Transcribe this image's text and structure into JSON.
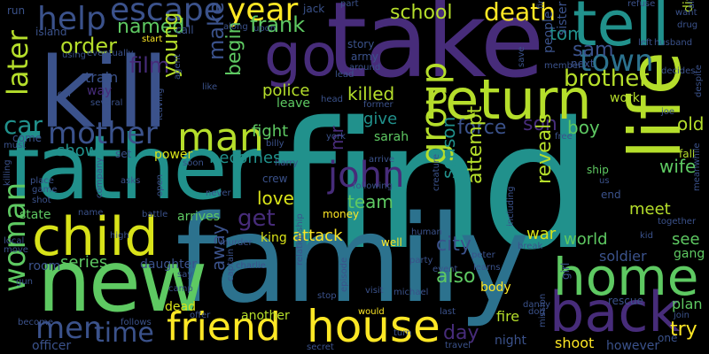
{
  "palette": {
    "background": "#000000",
    "navy": "#3b528b",
    "purple": "#472c7a",
    "teal": "#21918c",
    "green": "#5ec962",
    "lime": "#b5de2b",
    "yellow": "#fde725",
    "gray": "#444444"
  },
  "words": [
    {
      "text": "find",
      "color": "#21918c"
    },
    {
      "text": "take",
      "color": "#472c7a"
    },
    {
      "text": "family",
      "color": "#2c728e"
    },
    {
      "text": "kill",
      "color": "#3b528b"
    },
    {
      "text": "father",
      "color": "#21918c"
    },
    {
      "text": "new",
      "color": "#5ec962"
    },
    {
      "text": "life",
      "color": "#b5de2b"
    },
    {
      "text": "child",
      "color": "#d8e219"
    },
    {
      "text": "friend",
      "color": "#fde725"
    },
    {
      "text": "house",
      "color": "#fde725"
    },
    {
      "text": "back",
      "color": "#472c7a"
    },
    {
      "text": "home",
      "color": "#5ec962"
    },
    {
      "text": "return",
      "color": "#b5de2b"
    },
    {
      "text": "tell",
      "color": "#21918c"
    },
    {
      "text": "go",
      "color": "#472c7a"
    },
    {
      "text": "man",
      "color": "#b5de2b"
    },
    {
      "text": "mother",
      "color": "#3b528b"
    },
    {
      "text": "help",
      "color": "#3b528b"
    },
    {
      "text": "escape",
      "color": "#3b528b"
    },
    {
      "text": "year",
      "color": "#fde725"
    },
    {
      "text": "town",
      "color": "#2c728e"
    },
    {
      "text": "john",
      "color": "#472c7a"
    },
    {
      "text": "group",
      "color": "#b5de2b"
    },
    {
      "text": "woman",
      "color": "#5ec962"
    },
    {
      "text": "men",
      "color": "#3b528b"
    },
    {
      "text": "time",
      "color": "#3b528b"
    },
    {
      "text": "later",
      "color": "#b5de2b"
    },
    {
      "text": "car",
      "color": "#21918c"
    },
    {
      "text": "order",
      "color": "#b5de2b"
    },
    {
      "text": "death",
      "color": "#fde725"
    },
    {
      "text": "tom",
      "color": "#21918c"
    },
    {
      "text": "sam",
      "color": "#3b528b"
    },
    {
      "text": "brother",
      "color": "#b5de2b"
    },
    {
      "text": "school",
      "color": "#b5de2b"
    },
    {
      "text": "frank",
      "color": "#5ec962"
    },
    {
      "text": "named",
      "color": "#5ec962"
    },
    {
      "text": "film",
      "color": "#472c7a"
    },
    {
      "text": "young",
      "color": "#b5de2b"
    },
    {
      "text": "make",
      "color": "#3b528b"
    },
    {
      "text": "begin",
      "color": "#5ec962"
    },
    {
      "text": "train",
      "color": "#3b528b"
    },
    {
      "text": "police",
      "color": "#b5de2b"
    },
    {
      "text": "killed",
      "color": "#b5de2b"
    },
    {
      "text": "show",
      "color": "#21918c"
    },
    {
      "text": "fight",
      "color": "#5ec962"
    },
    {
      "text": "mr",
      "color": "#472c7a"
    },
    {
      "text": "give",
      "color": "#21918c"
    },
    {
      "text": "force",
      "color": "#3b528b"
    },
    {
      "text": "son",
      "color": "#472c7a"
    },
    {
      "text": "boy",
      "color": "#5ec962"
    },
    {
      "text": "old",
      "color": "#b5de2b"
    },
    {
      "text": "becomes",
      "color": "#21918c"
    },
    {
      "text": "love",
      "color": "#d8e219"
    },
    {
      "text": "team",
      "color": "#5ec962"
    },
    {
      "text": "get",
      "color": "#472c7a"
    },
    {
      "text": "season",
      "color": "#21918c"
    },
    {
      "text": "attempt",
      "color": "#b5de2b"
    },
    {
      "text": "reveals",
      "color": "#b5de2b"
    },
    {
      "text": "wife",
      "color": "#5ec962"
    },
    {
      "text": "meet",
      "color": "#b5de2b"
    },
    {
      "text": "war",
      "color": "#d8e219"
    },
    {
      "text": "world",
      "color": "#5ec962"
    },
    {
      "text": "see",
      "color": "#5ec962"
    },
    {
      "text": "city",
      "color": "#3b528b"
    },
    {
      "text": "attack",
      "color": "#fde725"
    },
    {
      "text": "king",
      "color": "#d8e219"
    },
    {
      "text": "series",
      "color": "#5ec962"
    },
    {
      "text": "away",
      "color": "#3b528b"
    },
    {
      "text": "also",
      "color": "#5ec962"
    },
    {
      "text": "day",
      "color": "#472c7a"
    },
    {
      "text": "try",
      "color": "#fde725"
    },
    {
      "text": "soldier",
      "color": "#3b528b"
    },
    {
      "text": "gang",
      "color": "#5ec962"
    },
    {
      "text": "plan",
      "color": "#5ec962"
    },
    {
      "text": "body",
      "color": "#fde725"
    },
    {
      "text": "fire",
      "color": "#b5de2b"
    },
    {
      "text": "shoot",
      "color": "#fde725"
    },
    {
      "text": "however",
      "color": "#3b528b"
    },
    {
      "text": "money",
      "color": "#fde725"
    },
    {
      "text": "crew",
      "color": "#3b528b"
    },
    {
      "text": "power",
      "color": "#d8e219"
    },
    {
      "text": "leave",
      "color": "#5ec962"
    },
    {
      "text": "sarah",
      "color": "#5ec962"
    },
    {
      "text": "officer",
      "color": "#3b528b"
    },
    {
      "text": "room",
      "color": "#3b528b"
    },
    {
      "text": "daughter",
      "color": "#3b528b"
    },
    {
      "text": "dead",
      "color": "#d8e219"
    },
    {
      "text": "another",
      "color": "#b5de2b"
    },
    {
      "text": "night",
      "color": "#3b528b"
    },
    {
      "text": "arrives",
      "color": "#5ec962"
    },
    {
      "text": "state",
      "color": "#5ec962"
    },
    {
      "text": "come",
      "color": "#3b528b"
    },
    {
      "text": "way",
      "color": "#472c7a"
    },
    {
      "text": "work",
      "color": "#b5de2b"
    },
    {
      "text": "next",
      "color": "#3b528b"
    },
    {
      "text": "people",
      "color": "#3b528b"
    },
    {
      "text": "sister",
      "color": "#3b528b"
    },
    {
      "text": "discovers",
      "color": "#b5de2b"
    },
    {
      "text": "rescue",
      "color": "#3b528b"
    },
    {
      "text": "one",
      "color": "#3b528b"
    },
    {
      "text": "ship",
      "color": "#5ec962"
    },
    {
      "text": "end",
      "color": "#3b528b"
    },
    {
      "text": "fall",
      "color": "#b5de2b"
    },
    {
      "text": "island",
      "color": "#3b528b"
    },
    {
      "text": "call",
      "color": "#3b528b"
    },
    {
      "text": "run",
      "color": "#3b528b"
    },
    {
      "text": "jack",
      "color": "#3b528b"
    },
    {
      "text": "story",
      "color": "#3b528b"
    },
    {
      "text": "army",
      "color": "#3b528b"
    },
    {
      "text": "start",
      "color": "#fde725"
    },
    {
      "text": "along",
      "color": "#3b528b"
    },
    {
      "text": "upon",
      "color": "#3b528b"
    },
    {
      "text": "eventually",
      "color": "#3b528b"
    },
    {
      "text": "using",
      "color": "#3b528b"
    },
    {
      "text": "around",
      "color": "#3b528b"
    },
    {
      "text": "lead",
      "color": "#3b528b"
    },
    {
      "text": "part",
      "color": "#3b528b"
    },
    {
      "text": "finally",
      "color": "#3b528b"
    },
    {
      "text": "refuse",
      "color": "#3b528b"
    },
    {
      "text": "want",
      "color": "#3b528b"
    },
    {
      "text": "drug",
      "color": "#3b528b"
    },
    {
      "text": "alien",
      "color": "#3b528b"
    },
    {
      "text": "left",
      "color": "#3b528b"
    },
    {
      "text": "husband",
      "color": "#3b528b"
    },
    {
      "text": "member",
      "color": "#3b528b"
    },
    {
      "text": "save",
      "color": "#3b528b"
    },
    {
      "text": "decides",
      "color": "#3b528b"
    },
    {
      "text": "several",
      "color": "#3b528b"
    },
    {
      "text": "like",
      "color": "#3b528b"
    },
    {
      "text": "head",
      "color": "#3b528b"
    },
    {
      "text": "former",
      "color": "#3b528b"
    },
    {
      "text": "joe",
      "color": "#3b528b"
    },
    {
      "text": "despite",
      "color": "#3b528b"
    },
    {
      "text": "leaf",
      "color": "#3b528b"
    },
    {
      "text": "agent",
      "color": "#3b528b"
    },
    {
      "text": "leaving",
      "color": "#3b528b"
    },
    {
      "text": "must",
      "color": "#3b528b"
    },
    {
      "text": "set",
      "color": "#3b528b"
    },
    {
      "text": "billy",
      "color": "#3b528b"
    },
    {
      "text": "york",
      "color": "#3b528b"
    },
    {
      "text": "free",
      "color": "#3b528b"
    },
    {
      "text": "soon",
      "color": "#3b528b"
    },
    {
      "text": "harry",
      "color": "#3b528b"
    },
    {
      "text": "arrive",
      "color": "#3b528b"
    },
    {
      "text": "us",
      "color": "#3b528b"
    },
    {
      "text": "killing",
      "color": "#3b528b"
    },
    {
      "text": "place",
      "color": "#3b528b"
    },
    {
      "text": "game",
      "color": "#3b528b"
    },
    {
      "text": "asks",
      "color": "#3b528b"
    },
    {
      "text": "open",
      "color": "#3b528b"
    },
    {
      "text": "never",
      "color": "#3b528b"
    },
    {
      "text": "following",
      "color": "#3b528b"
    },
    {
      "text": "creature",
      "color": "#3b528b"
    },
    {
      "text": "shot",
      "color": "#3b528b"
    },
    {
      "text": "company",
      "color": "#3b528b"
    },
    {
      "text": "name",
      "color": "#3b528b"
    },
    {
      "text": "battle",
      "color": "#3b528b"
    },
    {
      "text": "together",
      "color": "#3b528b"
    },
    {
      "text": "meanwhile",
      "color": "#3b528b"
    },
    {
      "text": "local",
      "color": "#3b528b"
    },
    {
      "text": "move",
      "color": "#3b528b"
    },
    {
      "text": "high",
      "color": "#3b528b"
    },
    {
      "text": "murder",
      "color": "#3b528b"
    },
    {
      "text": "well",
      "color": "#fde725"
    },
    {
      "text": "human",
      "color": "#3b528b"
    },
    {
      "text": "including",
      "color": "#3b528b"
    },
    {
      "text": "break",
      "color": "#3b528b"
    },
    {
      "text": "peter",
      "color": "#3b528b"
    },
    {
      "text": "learns",
      "color": "#3b528b"
    },
    {
      "text": "party",
      "color": "#3b528b"
    },
    {
      "text": "event",
      "color": "#3b528b"
    },
    {
      "text": "gun",
      "color": "#3b528b"
    },
    {
      "text": "say",
      "color": "#3b528b"
    },
    {
      "text": "charlie",
      "color": "#3b528b"
    },
    {
      "text": "camp",
      "color": "#3b528b"
    },
    {
      "text": "captain",
      "color": "#3b528b"
    },
    {
      "text": "relationship",
      "color": "#3b528b"
    },
    {
      "text": "stop",
      "color": "#3b528b"
    },
    {
      "text": "episode",
      "color": "#3b528b"
    },
    {
      "text": "visit",
      "color": "#3b528b"
    },
    {
      "text": "michael",
      "color": "#3b528b"
    },
    {
      "text": "girl",
      "color": "#3b528b"
    },
    {
      "text": "danny",
      "color": "#3b528b"
    },
    {
      "text": "dog",
      "color": "#3b528b"
    },
    {
      "text": "mission",
      "color": "#3b528b"
    },
    {
      "text": "join",
      "color": "#3b528b"
    },
    {
      "text": "become",
      "color": "#3b528b"
    },
    {
      "text": "follows",
      "color": "#3b528b"
    },
    {
      "text": "offer",
      "color": "#3b528b"
    },
    {
      "text": "would",
      "color": "#fde725"
    },
    {
      "text": "turn",
      "color": "#3b528b"
    },
    {
      "text": "last",
      "color": "#3b528b"
    },
    {
      "text": "travel",
      "color": "#3b528b"
    },
    {
      "text": "secret",
      "color": "#3b528b"
    },
    {
      "text": "kid",
      "color": "#3b528b"
    }
  ]
}
